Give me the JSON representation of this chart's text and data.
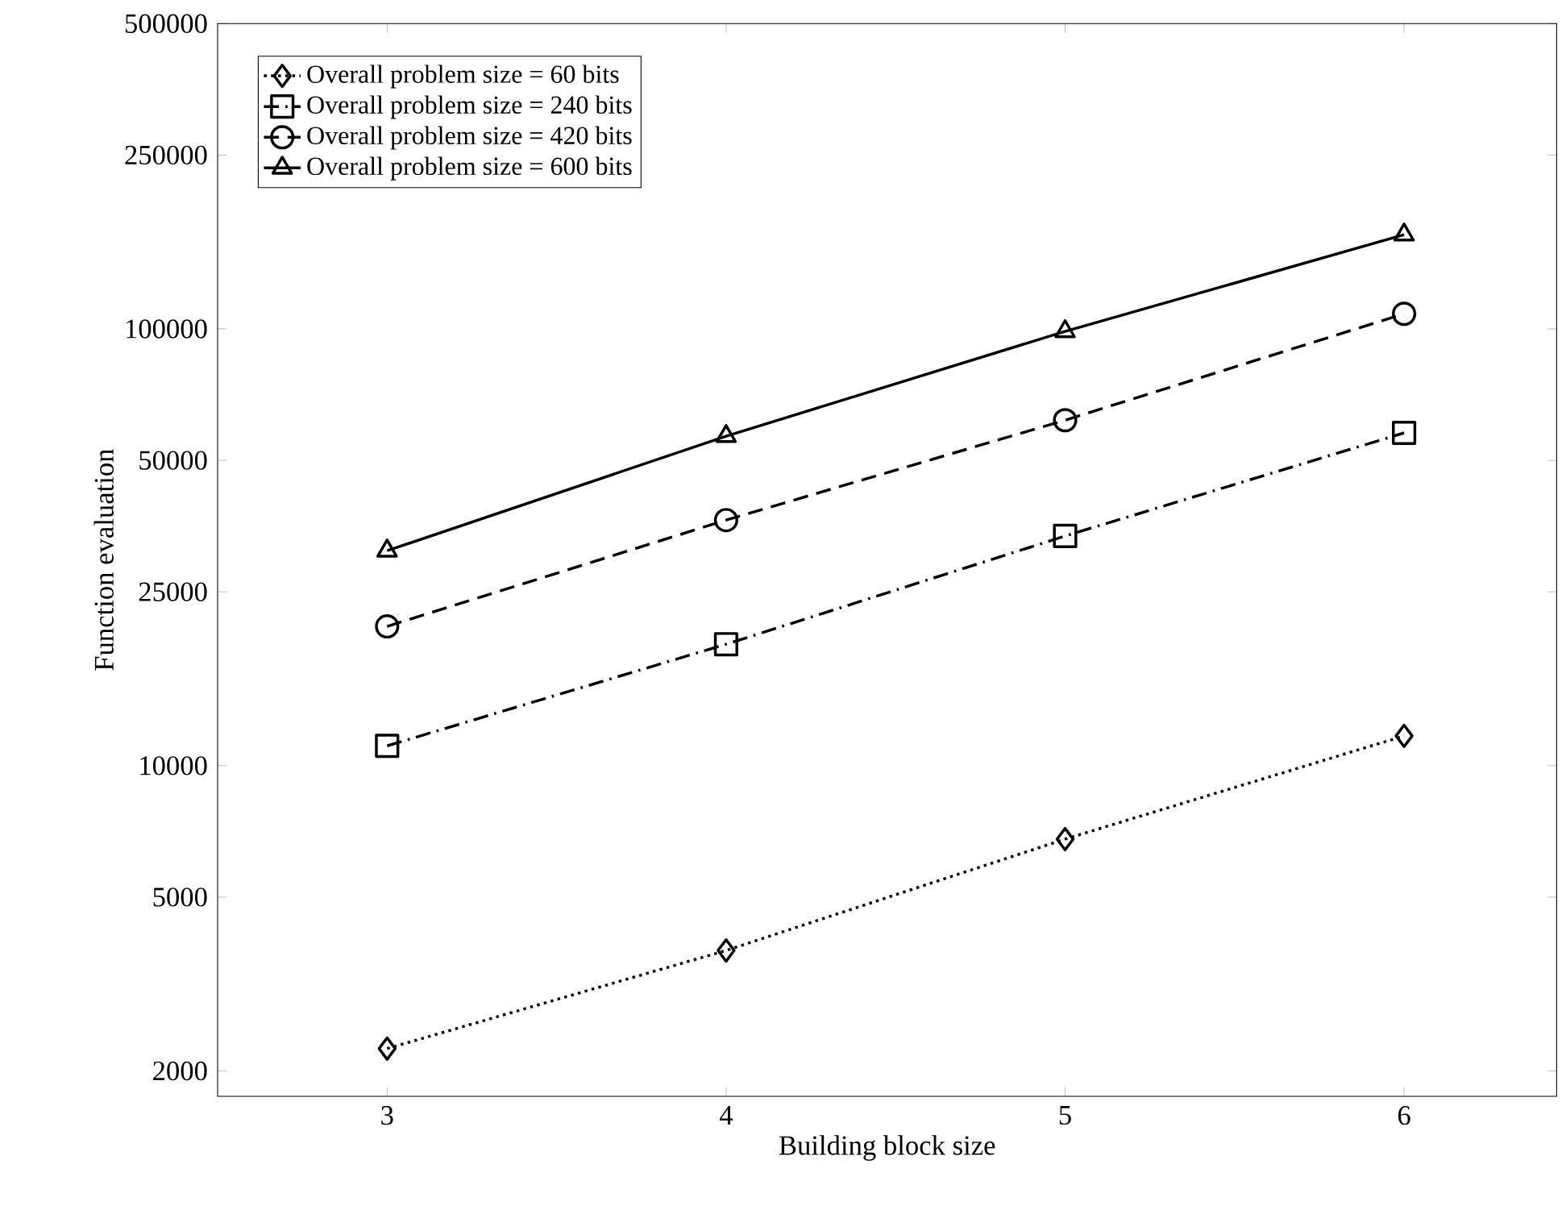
{
  "chart_data": {
    "type": "line",
    "xlabel": "Building block size",
    "ylabel": "Function evaluation",
    "x": [
      3,
      4,
      5,
      6
    ],
    "xlim": [
      2.5,
      6.45
    ],
    "xticks": [
      3,
      4,
      5,
      6
    ],
    "ylim": [
      1750,
      500000
    ],
    "yticks": [
      2000,
      5000,
      10000,
      25000,
      50000,
      100000,
      250000,
      500000
    ],
    "log": "y",
    "grid": false,
    "legend": "top left",
    "series": [
      {
        "name": "Overall problem size = 60 bits",
        "color": "#000000",
        "marker": "diamond",
        "line_style": "dotted",
        "values": [
          2250,
          3775,
          6790,
          11700
        ]
      },
      {
        "name": "Overall problem size = 240 bits",
        "color": "#000000",
        "marker": "square",
        "line_style": "dashdot",
        "values": [
          11100,
          18970,
          33560,
          57800
        ]
      },
      {
        "name": "Overall problem size = 420 bits",
        "color": "#000000",
        "marker": "circle",
        "line_style": "dashed",
        "values": [
          20840,
          36500,
          61800,
          108300
        ]
      },
      {
        "name": "Overall problem size = 600 bits",
        "color": "#000000",
        "marker": "triangle",
        "line_style": "solid",
        "values": [
          31050,
          56800,
          98700,
          164300
        ]
      }
    ]
  }
}
